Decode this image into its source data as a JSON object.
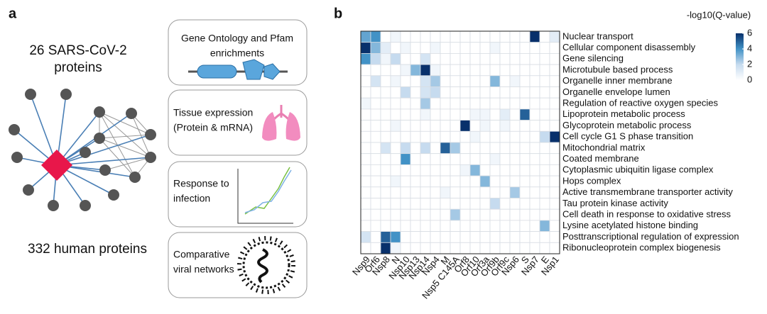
{
  "panel_a": {
    "label": "a",
    "top_text": [
      "26 SARS-CoV-2",
      "proteins"
    ],
    "bottom_text": "332 human proteins",
    "boxes": [
      [
        "Gene Ontology and Pfam",
        "enrichments"
      ],
      [
        "Tissue expression",
        "(Protein & mRNA)"
      ],
      [
        "Response to",
        "infection"
      ],
      [
        "Comparative",
        "viral networks"
      ]
    ]
  },
  "chart_data": {
    "type": "heatmap",
    "label": "b",
    "columns": [
      "Nsp9",
      "Orf6",
      "Nsp8",
      "N",
      "Nsp10",
      "Nsp13",
      "Nsp14",
      "Nsp4",
      "M",
      "Nsp5 C145A",
      "Orf8",
      "Orf10",
      "Orf3a",
      "Orf9b",
      "Orf9c",
      "Nsp6",
      "S",
      "Nsp7",
      "E",
      "Nsp1"
    ],
    "rows": [
      "Nuclear transport",
      "Cellular component disassembly",
      "Gene silencing",
      "Microtubule based process",
      "Organelle inner membrane",
      "Organelle envelope lumen",
      "Regulation of reactive oxygen species",
      "Lipoprotein metabolic process",
      "Glycoprotein metabolic process",
      "Cell cycle G1 S phase transition",
      "Mitochondrial matrix",
      "Coated membrane",
      "Cytoplasmic ubiquitin ligase complex",
      "Hops complex",
      "Active transmembrane transporter activity",
      "Tau protein kinase activity",
      "Cell death in response to oxidative stress",
      "Lysine acetylated histone binding",
      "Posttranscriptional regulation of expression",
      "Ribonucleoprotein complex biogenesis"
    ],
    "values": [
      [
        3.5,
        4,
        0,
        0.5,
        0,
        0,
        0,
        0,
        0,
        0,
        0,
        0,
        0,
        0,
        0,
        0,
        0,
        6,
        0,
        1
      ],
      [
        6,
        3,
        1,
        0,
        0.5,
        0,
        0,
        0.5,
        0,
        0,
        0,
        0,
        0,
        0.5,
        0,
        0,
        0,
        0,
        0,
        0
      ],
      [
        4,
        2,
        0.5,
        2,
        0,
        0,
        1.5,
        0,
        0,
        0,
        0,
        0,
        0,
        0,
        0,
        0,
        0,
        0,
        0,
        0
      ],
      [
        0,
        0,
        0,
        0,
        0.5,
        3,
        6,
        0.5,
        0,
        0,
        0,
        0,
        0,
        0,
        0,
        0,
        0,
        0,
        0,
        0
      ],
      [
        0,
        1.5,
        0,
        0.5,
        0,
        0,
        1.5,
        2.5,
        0,
        0,
        0,
        0,
        0,
        3,
        0,
        0.5,
        0,
        0,
        0,
        0
      ],
      [
        0,
        0,
        0,
        0,
        2,
        0,
        1.5,
        2,
        0,
        0,
        0,
        0,
        0,
        0,
        0,
        0,
        0,
        0,
        0,
        0
      ],
      [
        0.5,
        0,
        0,
        0,
        0,
        0,
        2.5,
        0,
        0,
        0,
        0,
        0,
        0,
        0,
        0,
        0,
        0,
        0,
        0,
        0
      ],
      [
        0,
        0,
        0,
        0,
        0,
        0,
        0.5,
        0,
        0,
        0,
        0,
        0.5,
        0.5,
        0,
        1,
        0,
        5,
        0,
        0,
        0
      ],
      [
        0,
        0,
        0,
        0.5,
        0,
        0,
        0,
        0,
        0,
        0,
        6,
        0,
        0.5,
        0,
        0.5,
        0,
        0,
        0,
        0,
        0
      ],
      [
        0,
        0,
        0,
        0,
        0,
        0,
        0,
        0,
        0,
        0,
        0,
        0.5,
        0,
        0,
        0,
        0,
        0,
        0,
        2,
        6
      ],
      [
        0,
        0,
        1.5,
        0,
        2,
        0,
        2,
        0,
        5,
        2.5,
        0,
        0,
        0,
        0,
        0,
        0,
        0,
        0,
        0,
        0
      ],
      [
        0,
        0,
        0,
        0,
        4,
        0,
        0,
        0,
        0,
        0,
        0,
        0,
        0,
        0.5,
        0,
        0,
        0,
        0,
        0,
        0
      ],
      [
        0,
        0,
        0,
        0,
        0,
        0,
        0,
        0,
        0,
        0,
        0.5,
        3,
        0,
        0,
        0,
        0,
        0,
        0,
        0,
        0
      ],
      [
        0,
        0,
        0,
        0.5,
        0,
        0,
        0,
        0,
        0,
        0,
        0,
        0,
        3,
        0,
        0,
        0,
        0,
        0,
        0,
        0
      ],
      [
        0,
        0,
        0,
        0,
        0,
        0,
        0,
        0,
        0.5,
        0,
        0,
        0,
        0,
        0,
        0,
        2.5,
        0,
        0,
        0,
        0
      ],
      [
        0,
        0,
        0,
        0,
        0,
        0,
        0,
        0,
        0,
        0,
        0,
        0,
        0,
        2,
        0,
        0,
        0,
        0,
        0,
        0
      ],
      [
        0,
        0,
        0,
        0,
        0,
        0,
        0,
        0,
        0,
        2.5,
        0,
        0,
        0,
        0,
        0,
        0,
        0,
        0,
        0,
        0
      ],
      [
        0,
        0,
        0,
        0,
        0,
        0,
        0,
        0,
        0,
        0,
        0,
        0,
        0,
        0,
        0,
        0,
        0,
        0,
        3,
        0
      ],
      [
        1.5,
        0,
        5,
        4,
        0,
        0,
        0,
        0,
        0,
        0,
        0,
        0,
        0,
        0,
        0,
        0,
        0,
        0,
        0,
        0
      ],
      [
        0,
        0,
        6,
        0.5,
        0,
        0,
        0,
        0,
        0,
        0,
        0,
        0,
        0,
        0,
        0,
        0,
        0,
        0,
        0,
        0
      ]
    ],
    "colorbar": {
      "title": "-log10(Q-value)",
      "lim": [
        0,
        6
      ],
      "ticks": [
        0,
        2,
        4,
        6
      ],
      "colors": [
        "#ffffff",
        "#c6dbef",
        "#4292c6",
        "#08306b"
      ]
    }
  }
}
